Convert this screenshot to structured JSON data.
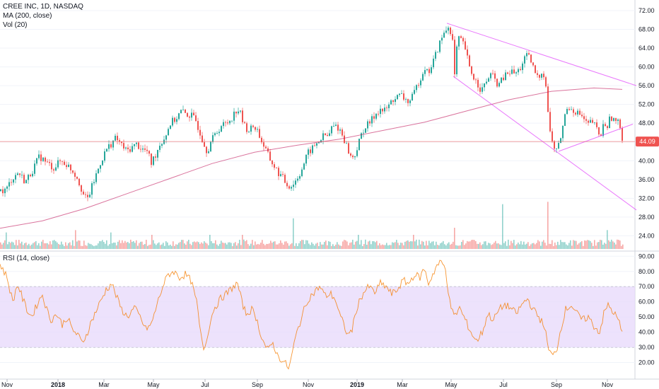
{
  "legend": {
    "title": "CREE INC, 1D, NASDAQ",
    "ma": "MA (200, close)",
    "vol": "Vol (20)",
    "rsi": "RSI (14, close)"
  },
  "last_price_label": "44.09",
  "colors": {
    "up": "#26a69a",
    "down": "#ef5350",
    "ma": "#c2185b",
    "rsi": "#f57c00",
    "rsi_band": "#e7d8fb",
    "trend": "#e040fb",
    "price_line": "#ef5350"
  },
  "chart_data": [
    {
      "type": "candlestick",
      "title": "CREE INC, 1D, NASDAQ",
      "x_ticks": [
        "Nov",
        "2018",
        "Mar",
        "May",
        "Jul",
        "Sep",
        "Nov",
        "2019",
        "Mar",
        "May",
        "Jul",
        "Sep",
        "Nov"
      ],
      "y_ticks": [
        "72.00",
        "68.00",
        "64.00",
        "60.00",
        "56.00",
        "52.00",
        "48.00",
        "44.00",
        "40.00",
        "36.00",
        "32.00",
        "28.00",
        "24.00"
      ],
      "ylim": [
        21.5,
        73.5
      ],
      "last_price": 44.09,
      "price_path": [
        [
          0,
          33.5
        ],
        [
          8,
          33.8
        ],
        [
          15,
          36.0
        ],
        [
          25,
          37.5
        ],
        [
          35,
          35.5
        ],
        [
          45,
          38.0
        ],
        [
          55,
          41.0
        ],
        [
          65,
          39.5
        ],
        [
          75,
          38.5
        ],
        [
          85,
          40.0
        ],
        [
          95,
          39.0
        ],
        [
          102,
          37.8
        ],
        [
          108,
          36.5
        ],
        [
          112,
          35.0
        ],
        [
          117,
          32.8
        ],
        [
          122,
          31.5
        ],
        [
          128,
          34.0
        ],
        [
          135,
          37.0
        ],
        [
          142,
          40.0
        ],
        [
          150,
          42.5
        ],
        [
          158,
          44.0
        ],
        [
          163,
          44.8
        ],
        [
          170,
          43.5
        ],
        [
          178,
          42.0
        ],
        [
          185,
          42.8
        ],
        [
          192,
          43.5
        ],
        [
          200,
          42.5
        ],
        [
          207,
          42.0
        ],
        [
          213,
          39.5
        ],
        [
          218,
          41.0
        ],
        [
          225,
          43.5
        ],
        [
          232,
          45.0
        ],
        [
          240,
          48.0
        ],
        [
          248,
          49.0
        ],
        [
          255,
          50.5
        ],
        [
          262,
          50.0
        ],
        [
          270,
          49.5
        ],
        [
          276,
          48.5
        ],
        [
          282,
          46.0
        ],
        [
          288,
          43.5
        ],
        [
          292,
          42.0
        ],
        [
          297,
          44.0
        ],
        [
          305,
          46.0
        ],
        [
          312,
          47.5
        ],
        [
          320,
          48.0
        ],
        [
          328,
          49.5
        ],
        [
          334,
          51.0
        ],
        [
          338,
          50.5
        ],
        [
          342,
          48.5
        ],
        [
          346,
          47.0
        ],
        [
          352,
          46.5
        ],
        [
          358,
          47.5
        ],
        [
          363,
          46.5
        ],
        [
          368,
          44.5
        ],
        [
          374,
          42.5
        ],
        [
          380,
          40.5
        ],
        [
          386,
          39.0
        ],
        [
          392,
          37.5
        ],
        [
          398,
          36.5
        ],
        [
          404,
          35.0
        ],
        [
          410,
          34.5
        ],
        [
          416,
          35.5
        ],
        [
          422,
          37.0
        ],
        [
          428,
          39.0
        ],
        [
          434,
          41.5
        ],
        [
          440,
          42.5
        ],
        [
          446,
          43.5
        ],
        [
          452,
          44.5
        ],
        [
          458,
          45.5
        ],
        [
          463,
          45.0
        ],
        [
          468,
          47.0
        ],
        [
          474,
          47.5
        ],
        [
          480,
          46.5
        ],
        [
          486,
          44.5
        ],
        [
          492,
          42.0
        ],
        [
          496,
          40.5
        ],
        [
          500,
          41.0
        ],
        [
          506,
          43.5
        ],
        [
          512,
          46.5
        ],
        [
          518,
          47.5
        ],
        [
          524,
          48.5
        ],
        [
          530,
          50.0
        ],
        [
          536,
          51.0
        ],
        [
          542,
          50.5
        ],
        [
          548,
          51.5
        ],
        [
          554,
          53.0
        ],
        [
          560,
          53.5
        ],
        [
          566,
          54.0
        ],
        [
          572,
          53.0
        ],
        [
          578,
          52.5
        ],
        [
          584,
          54.0
        ],
        [
          590,
          56.5
        ],
        [
          596,
          58.5
        ],
        [
          600,
          60.0
        ],
        [
          604,
          58.5
        ],
        [
          610,
          60.5
        ],
        [
          616,
          63.0
        ],
        [
          622,
          65.5
        ],
        [
          628,
          67.5
        ],
        [
          633,
          68.5
        ],
        [
          637,
          67.5
        ],
        [
          640,
          64.5
        ],
        [
          642,
          58.0
        ],
        [
          646,
          66.0
        ],
        [
          652,
          65.5
        ],
        [
          658,
          63.5
        ],
        [
          662,
          60.0
        ],
        [
          668,
          58.0
        ],
        [
          674,
          56.5
        ],
        [
          680,
          55.0
        ],
        [
          686,
          56.5
        ],
        [
          692,
          58.5
        ],
        [
          698,
          57.5
        ],
        [
          704,
          56.0
        ],
        [
          710,
          57.5
        ],
        [
          716,
          58.5
        ],
        [
          722,
          59.0
        ],
        [
          728,
          58.5
        ],
        [
          734,
          59.5
        ],
        [
          740,
          61.5
        ],
        [
          745,
          62.5
        ],
        [
          750,
          61.0
        ],
        [
          755,
          59.0
        ],
        [
          760,
          57.5
        ],
        [
          765,
          59.0
        ],
        [
          770,
          58.0
        ],
        [
          773,
          52.0
        ],
        [
          777,
          46.0
        ],
        [
          781,
          43.5
        ],
        [
          785,
          42.0
        ],
        [
          790,
          43.5
        ],
        [
          795,
          47.5
        ],
        [
          800,
          51.0
        ],
        [
          806,
          51.5
        ],
        [
          812,
          50.5
        ],
        [
          818,
          50.0
        ],
        [
          824,
          49.0
        ],
        [
          830,
          47.5
        ],
        [
          836,
          48.5
        ],
        [
          842,
          47.0
        ],
        [
          848,
          45.0
        ],
        [
          853,
          48.0
        ],
        [
          858,
          47.5
        ],
        [
          863,
          49.5
        ],
        [
          868,
          48.5
        ],
        [
          873,
          48.0
        ],
        [
          877,
          47.0
        ],
        [
          880,
          44.09
        ]
      ],
      "ma_200": [
        [
          0,
          25.6
        ],
        [
          60,
          27.2
        ],
        [
          120,
          29.8
        ],
        [
          180,
          33.0
        ],
        [
          240,
          36.2
        ],
        [
          300,
          39.4
        ],
        [
          360,
          41.8
        ],
        [
          420,
          43.3
        ],
        [
          480,
          44.6
        ],
        [
          540,
          46.4
        ],
        [
          600,
          48.2
        ],
        [
          660,
          50.6
        ],
        [
          720,
          53.0
        ],
        [
          780,
          54.8
        ],
        [
          840,
          55.5
        ],
        [
          880,
          55.2
        ]
      ],
      "trendlines": [
        [
          [
            632,
            69.3
          ],
          [
            900,
            56.0
          ]
        ],
        [
          [
            641,
            58.0
          ],
          [
            900,
            29.5
          ]
        ],
        [
          [
            790,
            42.0
          ],
          [
            895,
            47.8
          ]
        ]
      ],
      "volume_spikes": [
        [
          8,
          7
        ],
        [
          105,
          8
        ],
        [
          155,
          7
        ],
        [
          213,
          6
        ],
        [
          295,
          6
        ],
        [
          342,
          6
        ],
        [
          413,
          13
        ],
        [
          505,
          6
        ],
        [
          584,
          6
        ],
        [
          642,
          9
        ],
        [
          709,
          19
        ],
        [
          773,
          20
        ],
        [
          857,
          8
        ]
      ],
      "volume_axis_max": 30
    },
    {
      "type": "line",
      "title": "RSI (14, close)",
      "y_ticks": [
        "90.00",
        "80.00",
        "70.00",
        "60.00",
        "50.00",
        "40.00",
        "30.00",
        "20.00"
      ],
      "ylim": [
        10,
        92
      ],
      "band": [
        30,
        70
      ],
      "rsi_path": [
        [
          0,
          85
        ],
        [
          10,
          76
        ],
        [
          18,
          60
        ],
        [
          25,
          72
        ],
        [
          32,
          62
        ],
        [
          38,
          55
        ],
        [
          45,
          50
        ],
        [
          52,
          58
        ],
        [
          60,
          65
        ],
        [
          66,
          55
        ],
        [
          72,
          48
        ],
        [
          80,
          52
        ],
        [
          88,
          45
        ],
        [
          95,
          50
        ],
        [
          102,
          42
        ],
        [
          110,
          38
        ],
        [
          116,
          33
        ],
        [
          122,
          38
        ],
        [
          130,
          48
        ],
        [
          140,
          58
        ],
        [
          150,
          68
        ],
        [
          158,
          72
        ],
        [
          165,
          63
        ],
        [
          172,
          55
        ],
        [
          180,
          50
        ],
        [
          190,
          56
        ],
        [
          198,
          50
        ],
        [
          206,
          42
        ],
        [
          214,
          45
        ],
        [
          222,
          58
        ],
        [
          230,
          70
        ],
        [
          238,
          78
        ],
        [
          246,
          80
        ],
        [
          254,
          76
        ],
        [
          262,
          78
        ],
        [
          270,
          74
        ],
        [
          278,
          60
        ],
        [
          284,
          38
        ],
        [
          289,
          28
        ],
        [
          294,
          40
        ],
        [
          302,
          55
        ],
        [
          312,
          62
        ],
        [
          322,
          66
        ],
        [
          330,
          70
        ],
        [
          336,
          72
        ],
        [
          342,
          60
        ],
        [
          348,
          52
        ],
        [
          356,
          55
        ],
        [
          362,
          50
        ],
        [
          368,
          40
        ],
        [
          374,
          32
        ],
        [
          380,
          28
        ],
        [
          386,
          33
        ],
        [
          392,
          25
        ],
        [
          398,
          22
        ],
        [
          404,
          19
        ],
        [
          409,
          16
        ],
        [
          414,
          28
        ],
        [
          420,
          40
        ],
        [
          428,
          52
        ],
        [
          436,
          62
        ],
        [
          444,
          66
        ],
        [
          452,
          70
        ],
        [
          460,
          64
        ],
        [
          468,
          65
        ],
        [
          474,
          62
        ],
        [
          480,
          52
        ],
        [
          486,
          45
        ],
        [
          492,
          38
        ],
        [
          498,
          42
        ],
        [
          506,
          58
        ],
        [
          514,
          66
        ],
        [
          522,
          70
        ],
        [
          530,
          66
        ],
        [
          538,
          72
        ],
        [
          546,
          70
        ],
        [
          554,
          65
        ],
        [
          562,
          68
        ],
        [
          570,
          74
        ],
        [
          578,
          72
        ],
        [
          586,
          78
        ],
        [
          594,
          76
        ],
        [
          600,
          82
        ],
        [
          606,
          72
        ],
        [
          612,
          78
        ],
        [
          618,
          84
        ],
        [
          624,
          86
        ],
        [
          630,
          82
        ],
        [
          636,
          60
        ],
        [
          642,
          50
        ],
        [
          650,
          56
        ],
        [
          658,
          48
        ],
        [
          666,
          40
        ],
        [
          674,
          34
        ],
        [
          682,
          40
        ],
        [
          690,
          52
        ],
        [
          698,
          48
        ],
        [
          706,
          55
        ],
        [
          714,
          58
        ],
        [
          722,
          56
        ],
        [
          730,
          52
        ],
        [
          738,
          58
        ],
        [
          746,
          62
        ],
        [
          754,
          55
        ],
        [
          762,
          50
        ],
        [
          770,
          44
        ],
        [
          776,
          28
        ],
        [
          782,
          24
        ],
        [
          788,
          30
        ],
        [
          794,
          44
        ],
        [
          800,
          55
        ],
        [
          808,
          58
        ],
        [
          816,
          52
        ],
        [
          824,
          48
        ],
        [
          832,
          50
        ],
        [
          840,
          44
        ],
        [
          848,
          40
        ],
        [
          854,
          52
        ],
        [
          860,
          58
        ],
        [
          866,
          54
        ],
        [
          872,
          50
        ],
        [
          876,
          46
        ],
        [
          880,
          39
        ]
      ]
    }
  ]
}
